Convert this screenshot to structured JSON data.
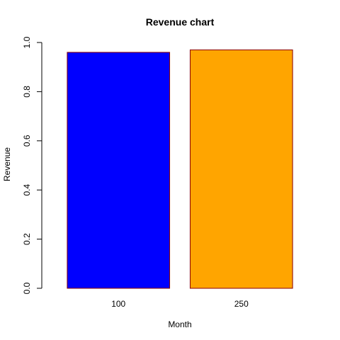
{
  "chart_data": {
    "type": "bar",
    "title": "Revenue chart",
    "xlabel": "Month",
    "ylabel": "Revenue",
    "categories": [
      "100",
      "250"
    ],
    "values": [
      0.96,
      0.97
    ],
    "colors": [
      "#0000ff",
      "#ffa500"
    ],
    "bar_border_color": "#8b0000",
    "ylim": [
      0,
      1
    ],
    "yticks": [
      "0.0",
      "0.2",
      "0.4",
      "0.6",
      "0.8",
      "1.0"
    ],
    "grid": false,
    "legend": "none"
  }
}
